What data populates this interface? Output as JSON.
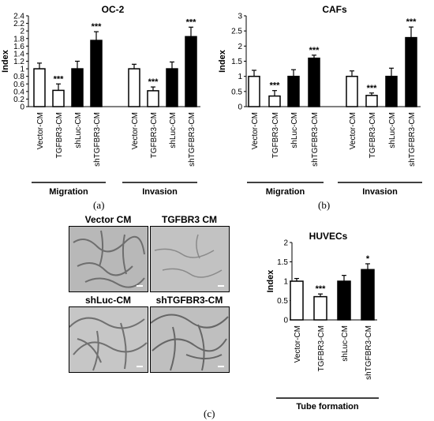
{
  "panel_labels": [
    "(a)",
    "(b)",
    "(c)"
  ],
  "chart_data": [
    {
      "type": "bar",
      "title": "OC-2",
      "ylabel": "Index",
      "ylim": [
        0,
        2.4
      ],
      "yticks": [
        "0",
        "0.2",
        "0.4",
        "0.6",
        "0.8",
        "1",
        "1.2",
        "1.4",
        "1.6",
        "1.8",
        "2",
        "2.2",
        "2.4"
      ],
      "categories": [
        "Vector-CM",
        "TGFBR3-CM",
        "shLuc-CM",
        "shTGFBR3-CM",
        "Vector-CM",
        "TGFBR3-CM",
        "shLuc-CM",
        "shTGFBR3-CM"
      ],
      "groups": [
        "Migration",
        "Invasion"
      ],
      "values": [
        1.0,
        0.43,
        1.0,
        1.75,
        1.0,
        0.42,
        1.0,
        1.85
      ],
      "errors": [
        0.15,
        0.17,
        0.2,
        0.23,
        0.12,
        0.1,
        0.18,
        0.25
      ],
      "fills": [
        "#ffffff",
        "#ffffff",
        "#000000",
        "#000000",
        "#ffffff",
        "#ffffff",
        "#000000",
        "#000000"
      ],
      "significance": [
        "",
        "***",
        "",
        "***",
        "",
        "***",
        "",
        "***"
      ]
    },
    {
      "type": "bar",
      "title": "CAFs",
      "ylabel": "Index",
      "ylim": [
        0,
        3
      ],
      "yticks": [
        "0",
        "0.5",
        "1",
        "1.5",
        "2",
        "2.5",
        "3"
      ],
      "categories": [
        "Vector-CM",
        "TGFBR3-CM",
        "shLuc-CM",
        "shTGFBR3-CM",
        "Vector-CM",
        "TGFBR3-CM",
        "shLuc-CM",
        "shTGFBR3-CM"
      ],
      "groups": [
        "Migration",
        "Invasion"
      ],
      "values": [
        1.0,
        0.35,
        1.0,
        1.6,
        1.0,
        0.37,
        1.0,
        2.28
      ],
      "errors": [
        0.2,
        0.18,
        0.22,
        0.1,
        0.18,
        0.08,
        0.27,
        0.35
      ],
      "fills": [
        "#ffffff",
        "#ffffff",
        "#000000",
        "#000000",
        "#ffffff",
        "#ffffff",
        "#000000",
        "#000000"
      ],
      "significance": [
        "",
        "***",
        "",
        "***",
        "",
        "***",
        "",
        "***"
      ]
    },
    {
      "type": "bar",
      "title": "HUVECs",
      "ylabel": "Index",
      "ylim": [
        0,
        2
      ],
      "yticks": [
        "0",
        "0.5",
        "1",
        "1.5",
        "2"
      ],
      "categories": [
        "Vector-CM",
        "TGFBR3-CM",
        "shLuc-CM",
        "shTGFBR3-CM"
      ],
      "groups": [
        "Tube formation"
      ],
      "values": [
        1.0,
        0.6,
        1.0,
        1.3
      ],
      "errors": [
        0.07,
        0.07,
        0.15,
        0.15
      ],
      "fills": [
        "#ffffff",
        "#ffffff",
        "#000000",
        "#000000"
      ],
      "significance": [
        "",
        "***",
        "",
        "*"
      ]
    }
  ],
  "micrographs": [
    {
      "title": "Vector CM"
    },
    {
      "title": "TGFBR3 CM"
    },
    {
      "title": "shLuc-CM"
    },
    {
      "title": "shTGFBR3-CM"
    }
  ]
}
